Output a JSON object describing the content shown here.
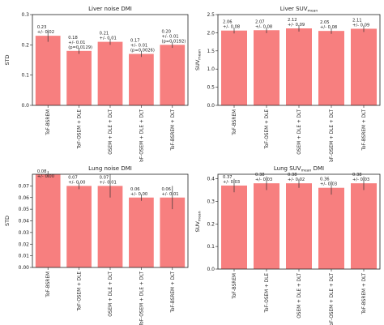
{
  "colors": {
    "bar": "#f77f7f",
    "errorbar": "#333333",
    "axis": "#222222"
  },
  "chart_data": [
    {
      "type": "bar",
      "title": "Liver noise DMI",
      "ylabel": "STD",
      "categories": [
        "ToF-BSREM",
        "ToF-OSEM + DLE",
        "OSEM + DLE + DLT",
        "ToF-OSEM + DLE + DLT",
        "ToF-BSREM + DLT"
      ],
      "values": [
        0.23,
        0.18,
        0.21,
        0.17,
        0.2
      ],
      "errors": [
        0.02,
        0.01,
        0.01,
        0.01,
        0.01
      ],
      "ylim": [
        0,
        0.3
      ],
      "yticks": [
        "0.0",
        "0.1",
        "0.2",
        "0.3"
      ],
      "ytick_values": [
        0,
        0.1,
        0.2,
        0.3
      ],
      "labels": [
        [
          "0.23",
          "+/- 0.02"
        ],
        [
          "0.18",
          "+/- 0.01",
          "(p=0.0129)"
        ],
        [
          "0.21",
          "+/- 0.01"
        ],
        [
          "0.17",
          "+/- 0.01",
          "(p=0.0026)"
        ],
        [
          "0.20",
          "+/- 0.01",
          "(p=0.0192)"
        ]
      ]
    },
    {
      "type": "bar",
      "title": "Liver SUV",
      "title_sub": "mean",
      "ylabel": "SUV",
      "ylabel_sub": "mean",
      "categories": [
        "ToF-BSREM",
        "ToF-OSEM + DLE",
        "OSEM + DLE + DLT",
        "ToF-OSEM + DLE + DLT",
        "ToF-BSREM + DLT"
      ],
      "values": [
        2.06,
        2.07,
        2.12,
        2.05,
        2.11
      ],
      "errors": [
        0.08,
        0.08,
        0.09,
        0.08,
        0.09
      ],
      "ylim": [
        0,
        2.5
      ],
      "yticks": [
        "0.0",
        "0.5",
        "1.0",
        "1.5",
        "2.0",
        "2.5"
      ],
      "ytick_values": [
        0,
        0.5,
        1.0,
        1.5,
        2.0,
        2.5
      ],
      "labels": [
        [
          "2.06",
          "+/- 0.08"
        ],
        [
          "2.07",
          "+/- 0.08"
        ],
        [
          "2.12",
          "+/- 0.09"
        ],
        [
          "2.05",
          "+/- 0.08"
        ],
        [
          "2.11",
          "+/- 0.09"
        ]
      ]
    },
    {
      "type": "bar",
      "title": "Lung noise DMI",
      "ylabel": "STD",
      "categories": [
        "ToF-BSREM",
        "ToF-OSEM + DLE",
        "OSEM + DLE + DLT",
        "ToF-OSEM + DLE + DLT",
        "ToF-BSREM + DLT"
      ],
      "values": [
        0.08,
        0.07,
        0.07,
        0.06,
        0.06
      ],
      "errors": [
        0.0,
        0.0,
        0.01,
        0.0,
        0.01
      ],
      "ylim": [
        0,
        0.08
      ],
      "yticks": [
        "0.00",
        "0.01",
        "0.02",
        "0.03",
        "0.04",
        "0.05",
        "0.06",
        "0.07"
      ],
      "ytick_values": [
        0,
        0.01,
        0.02,
        0.03,
        0.04,
        0.05,
        0.06,
        0.07
      ],
      "labels": [
        [
          "0.08",
          "+/- 0.00"
        ],
        [
          "0.07",
          "+/- 0.00"
        ],
        [
          "0.07",
          "+/- 0.01"
        ],
        [
          "0.06",
          "+/- 0.00"
        ],
        [
          "0.06",
          "+/- 0.01"
        ]
      ]
    },
    {
      "type": "bar",
      "title": "Lung SUV",
      "title_sub": "mean",
      "title_suffix": "DMI",
      "ylabel": "SUV",
      "ylabel_sub": "mean",
      "categories": [
        "ToF-BSREM",
        "ToF-OSEM + DLE",
        "OSEM + DLE + DLT",
        "ToF-OSEM + DLE + DLT",
        "ToF-BSREM + DLT"
      ],
      "values": [
        0.37,
        0.38,
        0.38,
        0.36,
        0.38
      ],
      "errors": [
        0.03,
        0.03,
        0.02,
        0.03,
        0.03
      ],
      "ylim": [
        0,
        0.42
      ],
      "yticks": [
        "0.0",
        "0.1",
        "0.2",
        "0.3",
        "0.4"
      ],
      "ytick_values": [
        0,
        0.1,
        0.2,
        0.3,
        0.4
      ],
      "labels": [
        [
          "0.37",
          "+/- 0.03"
        ],
        [
          "0.38",
          "+/- 0.03"
        ],
        [
          "0.38",
          "+/- 0.02"
        ],
        [
          "0.36",
          "+/- 0.03"
        ],
        [
          "0.38",
          "+/- 0.03"
        ]
      ]
    }
  ]
}
